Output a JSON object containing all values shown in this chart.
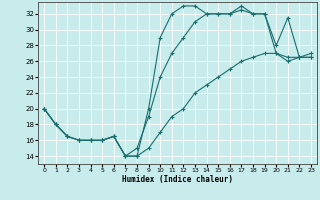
{
  "background_color": "#c8ecec",
  "grid_color": "#ffffff",
  "line_color": "#1a6e6e",
  "xlabel": "Humidex (Indice chaleur)",
  "xlim": [
    -0.5,
    23.5
  ],
  "ylim": [
    13.0,
    33.5
  ],
  "xticks": [
    0,
    1,
    2,
    3,
    4,
    5,
    6,
    7,
    8,
    9,
    10,
    11,
    12,
    13,
    14,
    15,
    16,
    17,
    18,
    19,
    20,
    21,
    22,
    23
  ],
  "yticks": [
    14,
    16,
    18,
    20,
    22,
    24,
    26,
    28,
    30,
    32
  ],
  "s1x": [
    0,
    1,
    2,
    3,
    4,
    5,
    6,
    7,
    8,
    9,
    10,
    11,
    12,
    13,
    14,
    15,
    16,
    17,
    18,
    19,
    20,
    21,
    22,
    23
  ],
  "s1y": [
    20,
    18,
    16.5,
    16,
    16,
    16,
    16.5,
    14,
    14,
    20,
    29,
    32,
    33,
    33,
    32,
    32,
    32,
    33,
    32,
    32,
    28,
    31.5,
    26.5,
    27
  ],
  "s2x": [
    0,
    1,
    2,
    3,
    4,
    5,
    6,
    7,
    8,
    9,
    10,
    11,
    12,
    13,
    14,
    15,
    16,
    17,
    18,
    19,
    20,
    21,
    22,
    23
  ],
  "s2y": [
    20,
    18,
    16.5,
    16,
    16,
    16,
    16.5,
    14,
    15,
    19,
    24,
    27,
    29,
    31,
    32,
    32,
    32,
    32.5,
    32,
    32,
    27,
    26,
    26.5,
    26.5
  ],
  "s3x": [
    0,
    1,
    2,
    3,
    4,
    5,
    6,
    7,
    8,
    9,
    10,
    11,
    12,
    13,
    14,
    15,
    16,
    17,
    18,
    19,
    20,
    21,
    22,
    23
  ],
  "s3y": [
    20,
    18,
    16.5,
    16,
    16,
    16,
    16.5,
    14,
    14,
    15,
    17,
    19,
    20,
    22,
    23,
    24,
    25,
    26,
    26.5,
    27,
    27,
    26.5,
    26.5,
    26.5
  ]
}
